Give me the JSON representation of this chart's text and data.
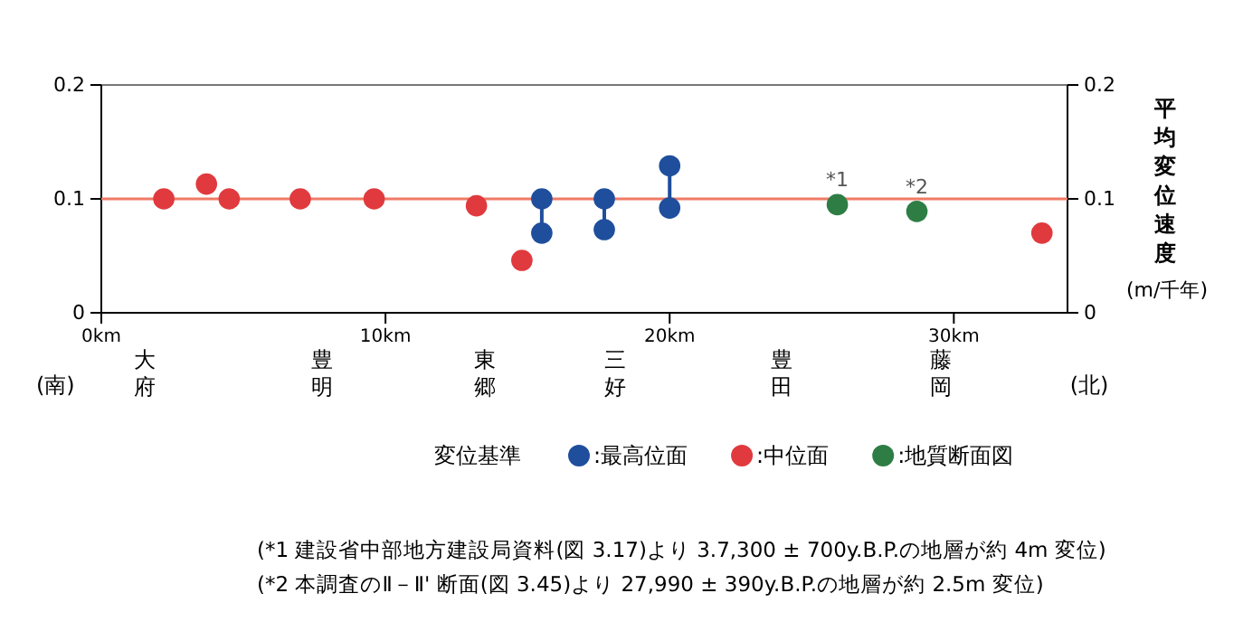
{
  "chart_data": {
    "type": "scatter",
    "legend_title": "変位基準",
    "y2label": "平均変位速度 (m/千年)",
    "xlim": [
      0,
      34
    ],
    "xticks": [
      {
        "value": 0,
        "label": "0km"
      },
      {
        "value": 10,
        "label": "10km"
      },
      {
        "value": 20,
        "label": "20km"
      },
      {
        "value": 30,
        "label": "30km"
      }
    ],
    "ylim": [
      0,
      0.2
    ],
    "yticks": [
      0,
      0.1,
      0.2
    ],
    "y2lim": [
      0,
      0.2
    ],
    "y2ticks": [
      0,
      0.1,
      0.2
    ],
    "grid": false,
    "legend": "bottom",
    "marker": "circle",
    "series": [
      {
        "name": ":最高位面",
        "color": "#1f4e9c",
        "x": [
          15.5,
          15.5,
          17.7,
          17.7,
          20.0,
          20.0
        ],
        "values": [
          0.1,
          0.07,
          0.1,
          0.073,
          0.129,
          0.092
        ]
      },
      {
        "name": ":中位面",
        "color": "#e03a3e",
        "x": [
          2.2,
          3.7,
          4.5,
          7.0,
          9.6,
          13.2,
          14.8,
          33.1
        ],
        "values": [
          0.1,
          0.113,
          0.1,
          0.1,
          0.1,
          0.094,
          0.046,
          0.07
        ]
      },
      {
        "name": ":地質断面図",
        "color": "#2e7d45",
        "x": [
          25.9,
          28.7
        ],
        "values": [
          0.095,
          0.089
        ]
      }
    ],
    "ref_lines": [
      {
        "axis": "y",
        "value": 0.1,
        "color": "#f07a66"
      }
    ],
    "annotations": [
      {
        "text": "*1",
        "x": 25.9,
        "y": 0.095
      },
      {
        "text": "*2",
        "x": 28.7,
        "y": 0.089
      },
      "大府",
      "豊明",
      "東郷",
      "三好",
      "豊田",
      "藤岡",
      "(南)",
      "(北)",
      "(*1 建設省中部地方建設局資料(図 3.17)より 3.7,300 ± 700y.B.P.の地層が約 4m 変位)",
      "(*2 本調査のⅡ－Ⅱ' 断面(図 3.45)より 27,990 ± 390y.B.P.の地層が約 2.5m 変位)"
    ]
  }
}
